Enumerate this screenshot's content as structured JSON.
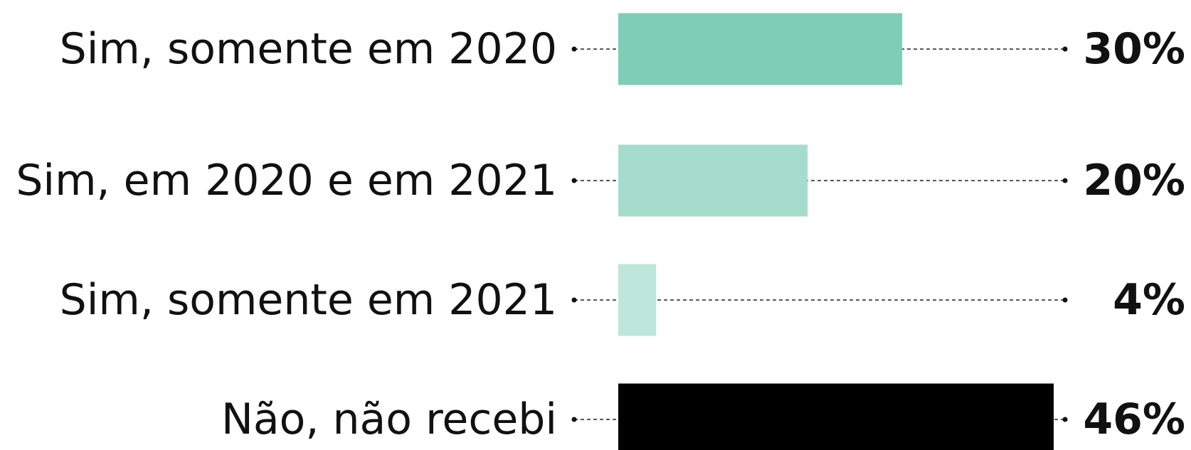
{
  "chart_data": {
    "type": "bar",
    "orientation": "horizontal",
    "categories": [
      "Sim, somente em 2020",
      "Sim, em 2020 e em 2021",
      "Sim, somente em 2021",
      "Não, não recebi"
    ],
    "values": [
      30,
      20,
      4,
      46
    ],
    "value_labels": [
      "30%",
      "20%",
      "4%",
      "46%"
    ],
    "colors": [
      "#7fcdb5",
      "#a6dccb",
      "#bfe6da",
      "#000000"
    ]
  }
}
